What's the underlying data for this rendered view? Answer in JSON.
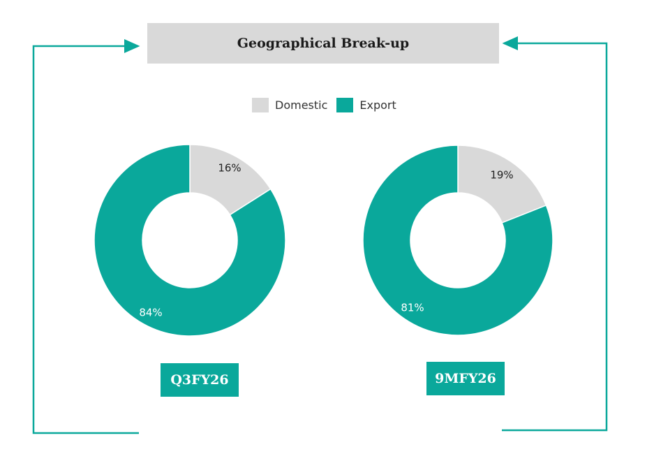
{
  "title": "Geographical Break-up",
  "colors": {
    "domestic": "#d9d9d9",
    "export": "#0aa89b",
    "frame": "#0aa89b",
    "title_bg": "#d9d9d9"
  },
  "legend": [
    {
      "label": "Domestic",
      "color": "#d9d9d9"
    },
    {
      "label": "Export",
      "color": "#0aa89b"
    }
  ],
  "chart_data": [
    {
      "type": "pie",
      "title": "Q3FY26",
      "categories": [
        "Domestic",
        "Export"
      ],
      "values": [
        16,
        84
      ],
      "labels": [
        "16%",
        "84%"
      ],
      "donut": true
    },
    {
      "type": "pie",
      "title": "9MFY26",
      "categories": [
        "Domestic",
        "Export"
      ],
      "values": [
        19,
        81
      ],
      "labels": [
        "19%",
        "81%"
      ],
      "donut": true
    }
  ]
}
